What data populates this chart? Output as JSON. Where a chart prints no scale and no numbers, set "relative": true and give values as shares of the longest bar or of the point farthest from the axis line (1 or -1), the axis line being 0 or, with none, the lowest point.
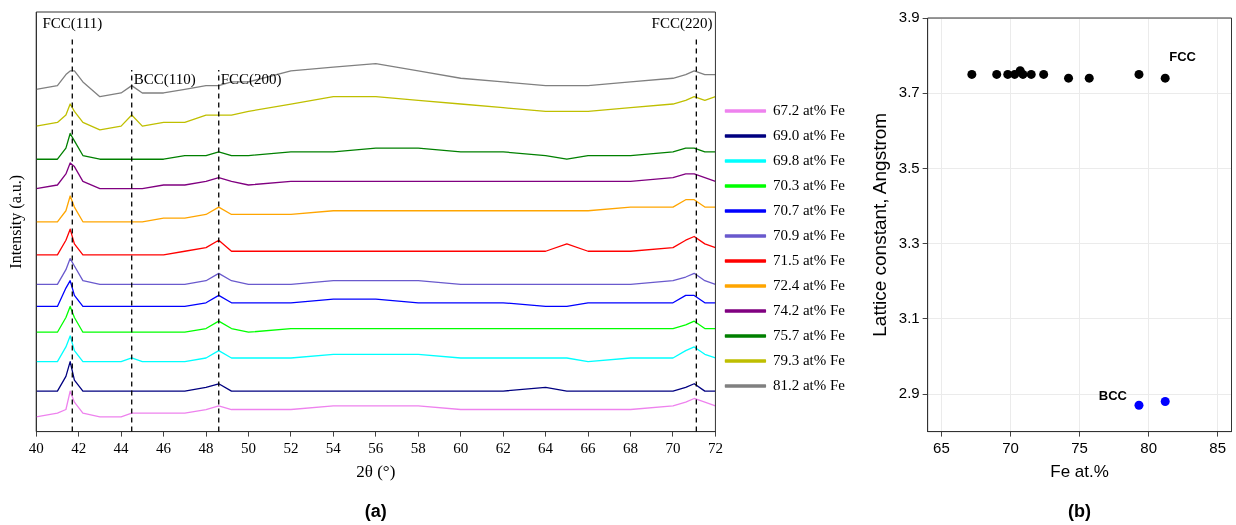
{
  "chart_data": [
    {
      "type": "line",
      "relative": true,
      "xlabel": "2θ (°)",
      "ylabel": "Intensity (a.u.)",
      "xlim": [
        40,
        72
      ],
      "xticks": [
        40,
        42,
        44,
        46,
        48,
        50,
        52,
        54,
        56,
        58,
        60,
        62,
        64,
        66,
        68,
        70,
        72
      ],
      "grid": false,
      "legend": "right",
      "x": [
        40,
        41,
        41.4,
        41.6,
        41.8,
        42.2,
        43,
        44,
        44.5,
        45,
        46,
        47,
        48,
        48.6,
        49.2,
        50,
        52,
        54,
        56,
        58,
        60,
        62,
        64,
        65,
        66,
        68,
        70,
        70.6,
        71,
        71.5,
        72
      ],
      "series": [
        {
          "name": "67.2 at% Fe",
          "color": "#ee82ee",
          "values": [
            0.04,
            0.05,
            0.06,
            0.11,
            0.08,
            0.05,
            0.04,
            0.04,
            0.05,
            0.05,
            0.05,
            0.05,
            0.06,
            0.07,
            0.06,
            0.06,
            0.06,
            0.07,
            0.07,
            0.07,
            0.06,
            0.06,
            0.06,
            0.06,
            0.06,
            0.06,
            0.07,
            0.08,
            0.09,
            0.08,
            0.07
          ]
        },
        {
          "name": "69.0 at% Fe",
          "color": "#000080",
          "values": [
            0.11,
            0.11,
            0.15,
            0.19,
            0.14,
            0.11,
            0.11,
            0.11,
            0.11,
            0.11,
            0.11,
            0.11,
            0.12,
            0.13,
            0.11,
            0.11,
            0.11,
            0.11,
            0.11,
            0.11,
            0.11,
            0.11,
            0.12,
            0.11,
            0.11,
            0.11,
            0.11,
            0.12,
            0.13,
            0.11,
            0.11
          ]
        },
        {
          "name": "69.8 at% Fe",
          "color": "#00ffff",
          "values": [
            0.19,
            0.19,
            0.23,
            0.26,
            0.22,
            0.19,
            0.19,
            0.19,
            0.2,
            0.19,
            0.19,
            0.19,
            0.2,
            0.22,
            0.2,
            0.2,
            0.2,
            0.21,
            0.21,
            0.21,
            0.2,
            0.2,
            0.2,
            0.2,
            0.19,
            0.2,
            0.2,
            0.22,
            0.23,
            0.21,
            0.2
          ]
        },
        {
          "name": "70.3 at% Fe",
          "color": "#00ff00",
          "values": [
            0.27,
            0.27,
            0.31,
            0.34,
            0.31,
            0.27,
            0.27,
            0.27,
            0.27,
            0.27,
            0.27,
            0.27,
            0.28,
            0.3,
            0.28,
            0.27,
            0.28,
            0.28,
            0.28,
            0.28,
            0.28,
            0.28,
            0.28,
            0.28,
            0.28,
            0.28,
            0.28,
            0.29,
            0.3,
            0.28,
            0.28
          ]
        },
        {
          "name": "70.7 at% Fe",
          "color": "#0000ff",
          "values": [
            0.34,
            0.34,
            0.39,
            0.41,
            0.37,
            0.34,
            0.34,
            0.34,
            0.34,
            0.34,
            0.34,
            0.34,
            0.35,
            0.37,
            0.35,
            0.35,
            0.35,
            0.36,
            0.36,
            0.35,
            0.35,
            0.35,
            0.34,
            0.34,
            0.35,
            0.35,
            0.35,
            0.37,
            0.37,
            0.35,
            0.35
          ]
        },
        {
          "name": "70.9 at% Fe",
          "color": "#6a5acd",
          "values": [
            0.4,
            0.4,
            0.44,
            0.47,
            0.45,
            0.41,
            0.4,
            0.4,
            0.4,
            0.4,
            0.4,
            0.4,
            0.41,
            0.43,
            0.41,
            0.4,
            0.4,
            0.41,
            0.41,
            0.41,
            0.4,
            0.4,
            0.4,
            0.4,
            0.4,
            0.4,
            0.41,
            0.42,
            0.43,
            0.41,
            0.4
          ]
        },
        {
          "name": "71.5 at% Fe",
          "color": "#ff0000",
          "values": [
            0.48,
            0.48,
            0.52,
            0.55,
            0.51,
            0.48,
            0.48,
            0.48,
            0.48,
            0.48,
            0.48,
            0.49,
            0.5,
            0.52,
            0.49,
            0.49,
            0.49,
            0.49,
            0.49,
            0.49,
            0.49,
            0.49,
            0.49,
            0.51,
            0.49,
            0.49,
            0.5,
            0.52,
            0.53,
            0.51,
            0.5
          ]
        },
        {
          "name": "72.4 at% Fe",
          "color": "#ffa500",
          "values": [
            0.57,
            0.57,
            0.6,
            0.64,
            0.61,
            0.57,
            0.57,
            0.57,
            0.57,
            0.57,
            0.58,
            0.58,
            0.59,
            0.61,
            0.59,
            0.59,
            0.59,
            0.6,
            0.6,
            0.6,
            0.6,
            0.6,
            0.6,
            0.6,
            0.6,
            0.61,
            0.61,
            0.63,
            0.63,
            0.61,
            0.61
          ]
        },
        {
          "name": "74.2 at% Fe",
          "color": "#800080",
          "values": [
            0.66,
            0.67,
            0.7,
            0.73,
            0.72,
            0.68,
            0.66,
            0.66,
            0.66,
            0.66,
            0.67,
            0.67,
            0.68,
            0.69,
            0.68,
            0.67,
            0.68,
            0.68,
            0.68,
            0.68,
            0.68,
            0.68,
            0.68,
            0.68,
            0.68,
            0.68,
            0.69,
            0.7,
            0.7,
            0.69,
            0.68
          ]
        },
        {
          "name": "75.7 at% Fe",
          "color": "#008000",
          "values": [
            0.74,
            0.74,
            0.77,
            0.81,
            0.79,
            0.75,
            0.74,
            0.74,
            0.74,
            0.74,
            0.74,
            0.75,
            0.75,
            0.76,
            0.75,
            0.75,
            0.76,
            0.76,
            0.77,
            0.77,
            0.76,
            0.76,
            0.75,
            0.74,
            0.75,
            0.75,
            0.76,
            0.77,
            0.77,
            0.76,
            0.76
          ]
        },
        {
          "name": "79.3 at% Fe",
          "color": "#bfbf00",
          "values": [
            0.83,
            0.84,
            0.86,
            0.89,
            0.87,
            0.84,
            0.82,
            0.83,
            0.86,
            0.83,
            0.84,
            0.84,
            0.86,
            0.86,
            0.86,
            0.87,
            0.89,
            0.91,
            0.91,
            0.9,
            0.89,
            0.88,
            0.87,
            0.87,
            0.87,
            0.88,
            0.89,
            0.9,
            0.91,
            0.9,
            0.91
          ]
        },
        {
          "name": "81.2 at% Fe",
          "color": "#808080",
          "values": [
            0.93,
            0.94,
            0.97,
            0.98,
            0.98,
            0.95,
            0.91,
            0.92,
            0.94,
            0.92,
            0.92,
            0.93,
            0.94,
            0.94,
            0.95,
            0.95,
            0.98,
            0.99,
            1.0,
            0.98,
            0.96,
            0.95,
            0.94,
            0.94,
            0.94,
            0.95,
            0.96,
            0.97,
            0.98,
            0.97,
            0.97
          ]
        }
      ],
      "ref_lines": [
        {
          "axis": "x",
          "value": 41.7,
          "label": "FCC(111)",
          "color": "#000000",
          "line_style": "dashed"
        },
        {
          "axis": "x",
          "value": 44.5,
          "label": "BCC(110)",
          "color": "#000000",
          "line_style": "dashed"
        },
        {
          "axis": "x",
          "value": 48.6,
          "label": "FCC(200)",
          "color": "#000000",
          "line_style": "dashed"
        },
        {
          "axis": "x",
          "value": 71.1,
          "label": "FCC(220)",
          "color": "#000000",
          "line_style": "dashed"
        }
      ],
      "annotations": [
        "(a)"
      ]
    },
    {
      "type": "scatter",
      "xlabel": "Fe at.%",
      "ylabel": "Lattice constant, Angstrom",
      "xlim": [
        64,
        86
      ],
      "xticks": [
        65,
        70,
        75,
        80,
        85
      ],
      "ylim": [
        2.8,
        3.9
      ],
      "yticks": [
        2.9,
        3.1,
        3.3,
        3.5,
        3.7,
        3.9
      ],
      "grid": true,
      "legend": false,
      "marker": "circle",
      "series": [
        {
          "name": "FCC",
          "color": "#000000",
          "x": [
            67.2,
            69.0,
            69.8,
            70.3,
            70.7,
            70.9,
            71.5,
            72.4,
            74.2,
            75.7,
            79.3,
            81.2
          ],
          "values": [
            3.75,
            3.75,
            3.75,
            3.75,
            3.76,
            3.75,
            3.75,
            3.75,
            3.74,
            3.74,
            3.75,
            3.74
          ]
        },
        {
          "name": "BCC",
          "color": "#0000ff",
          "x": [
            79.3,
            81.2
          ],
          "values": [
            2.87,
            2.88
          ]
        }
      ],
      "annotations": [
        "(b)"
      ]
    }
  ]
}
